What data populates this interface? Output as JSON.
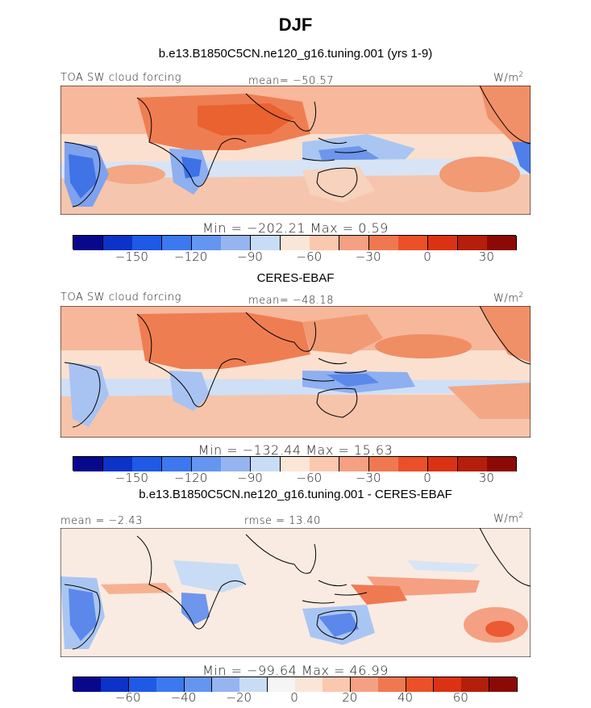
{
  "page": {
    "title": "DJF"
  },
  "panels": [
    {
      "header": "b.e13.B1850C5CN.ne120_g16.tuning.001 (yrs 1-9)",
      "left_label": "TOA SW cloud forcing",
      "center_label": "mean= −50.57",
      "units": "W/m",
      "units_exp": "2",
      "minmax": "Min = −202.21 Max =   0.59",
      "colorbar": {
        "colors": [
          "#08088c",
          "#0c32c8",
          "#1e5ae6",
          "#3c78f0",
          "#6495f0",
          "#96b4f0",
          "#c8dcf5",
          "#fae6d7",
          "#fac8af",
          "#f5a082",
          "#f07850",
          "#eb5028",
          "#dc3214",
          "#b41e0a",
          "#8c0a05"
        ],
        "ticks": [
          "−150",
          "−120",
          "−90",
          "−60",
          "−30",
          "0",
          "30"
        ]
      }
    },
    {
      "header": "CERES-EBAF",
      "left_label": "TOA SW cloud forcing",
      "center_label": "mean= −48.18",
      "units": "W/m",
      "units_exp": "2",
      "minmax": "Min = −132.44 Max =  15.63",
      "colorbar": {
        "colors": [
          "#08088c",
          "#0c32c8",
          "#1e5ae6",
          "#3c78f0",
          "#6495f0",
          "#96b4f0",
          "#c8dcf5",
          "#fae6d7",
          "#fac8af",
          "#f5a082",
          "#f07850",
          "#eb5028",
          "#dc3214",
          "#b41e0a",
          "#8c0a05"
        ],
        "ticks": [
          "−150",
          "−120",
          "−90",
          "−60",
          "−30",
          "0",
          "30"
        ]
      }
    },
    {
      "header": "b.e13.B1850C5CN.ne120_g16.tuning.001 - CERES-EBAF",
      "left_label": "mean = −2.43",
      "center_label": "rmse =  13.40",
      "units": "W/m",
      "units_exp": "2",
      "minmax": "Min = −99.64 Max =  46.99",
      "colorbar": {
        "colors": [
          "#08088c",
          "#0c32c8",
          "#1e5ae6",
          "#3c78f0",
          "#6495f0",
          "#96b4f0",
          "#c8dcf5",
          "#f5f5f5",
          "#fae6d7",
          "#fac8af",
          "#f5a082",
          "#f07850",
          "#eb5028",
          "#dc3214",
          "#b41e0a",
          "#8c0a05"
        ],
        "ticks": [
          "−60",
          "−40",
          "−20",
          "0",
          "20",
          "40",
          "60"
        ]
      }
    }
  ]
}
